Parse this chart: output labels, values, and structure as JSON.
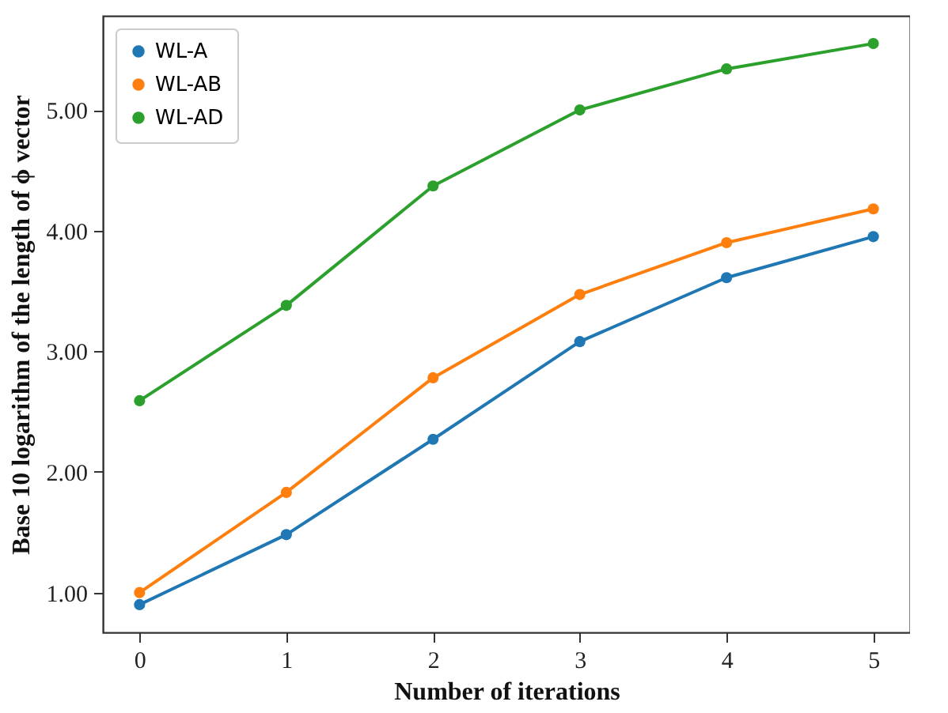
{
  "chart_data": {
    "type": "line",
    "xlabel": "Number of iterations",
    "ylabel": "Base 10 logarithm of the length of ϕ vector",
    "x": [
      0,
      1,
      2,
      3,
      4,
      5
    ],
    "series": [
      {
        "name": "WL-A",
        "color": "#1f77b4",
        "values": [
          0.9,
          1.48,
          2.27,
          3.08,
          3.61,
          3.95
        ]
      },
      {
        "name": "WL-AB",
        "color": "#ff7f0e",
        "values": [
          1.0,
          1.83,
          2.78,
          3.47,
          3.9,
          4.18
        ]
      },
      {
        "name": "WL-AD",
        "color": "#2ca02c",
        "values": [
          2.59,
          3.38,
          4.37,
          5.0,
          5.34,
          5.55
        ]
      }
    ],
    "xlim": [
      -0.25,
      5.25
    ],
    "xticks": [
      0,
      1,
      2,
      3,
      4,
      5
    ],
    "ylim": [
      0.67,
      5.78
    ],
    "yticks": [
      {
        "value": 1,
        "label": "1.00"
      },
      {
        "value": 2,
        "label": "2.00"
      },
      {
        "value": 3,
        "label": "3.00"
      },
      {
        "value": 4,
        "label": "4.00"
      },
      {
        "value": 5,
        "label": "5.00"
      }
    ],
    "grid": false,
    "legend": "top left",
    "marker": "circle",
    "line_style": "solid"
  }
}
